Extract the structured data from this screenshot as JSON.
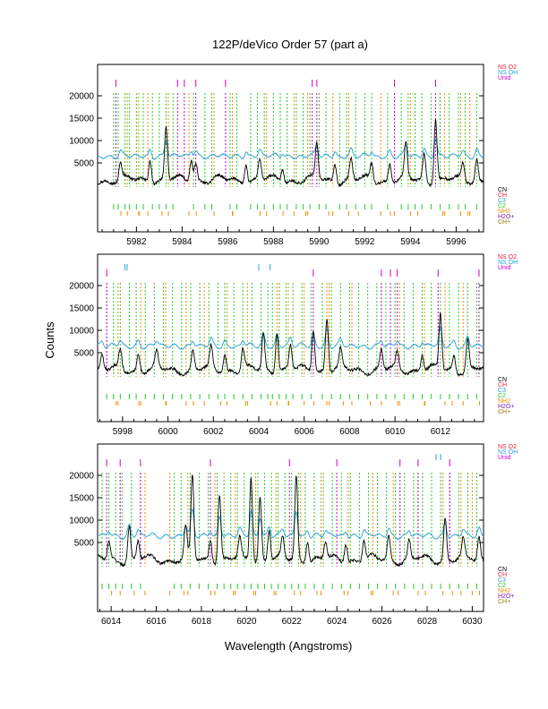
{
  "chart_data": {
    "type": "line",
    "title": "122P/deVico Order 57 (part a)",
    "xlabel": "Wavelength (Angstroms)",
    "ylabel": "Counts",
    "colors": {
      "spectrum": "#000000",
      "model": "#2aa0d8",
      "CN": "#000000",
      "CH": "#e8203c",
      "C3": "#2aa0d8",
      "C2": "#22cc22",
      "NH2": "#f08c00",
      "H2O+": "#7b1fa2",
      "CH+": "#9a7b00",
      "NSO2": "#e8203c",
      "NSOH": "#2aa0d8",
      "Unid": "#cc00cc"
    },
    "top_legend": [
      "NS O2",
      "NS OH",
      "Unid"
    ],
    "bottom_legend": [
      "CN",
      "CH",
      "C3",
      "C2",
      "NH2",
      "H2O+",
      "CH+"
    ],
    "panels": [
      {
        "xlim": [
          5980.3,
          5997.2
        ],
        "xticks": [
          5982,
          5984,
          5986,
          5988,
          5990,
          5992,
          5994,
          5996
        ],
        "ytick_labels": [
          "20000",
          "15000",
          "10000",
          "5000"
        ],
        "yticks": [
          20000,
          15000,
          10000,
          5000
        ],
        "peaks": [
          [
            5981.3,
            3500
          ],
          [
            5982.6,
            5200
          ],
          [
            5983.3,
            11500
          ],
          [
            5984.4,
            5000
          ],
          [
            5984.6,
            4200
          ],
          [
            5986.8,
            4300
          ],
          [
            5987.4,
            4500
          ],
          [
            5988.4,
            3000
          ],
          [
            5989.9,
            8000
          ],
          [
            5990.7,
            4200
          ],
          [
            5991.4,
            4500
          ],
          [
            5992.3,
            3800
          ],
          [
            5993.1,
            3900
          ],
          [
            5993.8,
            7500
          ],
          [
            5994.6,
            6000
          ],
          [
            5995.1,
            14000
          ],
          [
            5996.3,
            3500
          ],
          [
            5996.9,
            5000
          ]
        ],
        "c2_lines": [
          5981.0,
          5981.2,
          5981.5,
          5981.7,
          5982.0,
          5982.3,
          5982.7,
          5983.0,
          5983.3,
          5983.6,
          5984.5,
          5985.0,
          5985.3,
          5986.1,
          5986.4,
          5987.0,
          5987.3,
          5987.6,
          5988.0,
          5988.3,
          5988.6,
          5989.0,
          5989.3,
          5989.6,
          5990.0,
          5990.3,
          5990.9,
          5991.2,
          5991.6,
          5992.0,
          5992.3,
          5993.0,
          5993.6,
          5993.9,
          5994.2,
          5994.5,
          5994.9,
          5995.3,
          5995.7,
          5996.1,
          5996.4,
          5996.9
        ],
        "nh2_lines": [
          5981.6,
          5982.1,
          5982.5,
          5983.4,
          5984.3,
          5985.4,
          5986.2,
          5987.7,
          5988.9,
          5989.5,
          5990.6,
          5991.3,
          5992.7,
          5993.3,
          5994.0,
          5995.5,
          5996.2,
          5996.6
        ],
        "unid_lines": [
          5981.1,
          5983.8,
          5984.1,
          5984.6,
          5985.9,
          5989.7,
          5989.9,
          5993.3,
          5995.1
        ],
        "c3_lines": [],
        "ch_lines": []
      },
      {
        "xlim": [
          5996.9,
          6013.9
        ],
        "xticks": [
          5998,
          6000,
          6002,
          6004,
          6006,
          6008,
          6010,
          6012
        ],
        "ytick_labels": [
          "20000",
          "15000",
          "10000",
          "5000"
        ],
        "yticks": [
          20000,
          15000,
          10000,
          5000
        ],
        "peaks": [
          [
            5997.1,
            3000
          ],
          [
            5997.9,
            4000
          ],
          [
            5998.7,
            3800
          ],
          [
            5999.5,
            3500
          ],
          [
            6001.1,
            4000
          ],
          [
            6001.9,
            4800
          ],
          [
            6002.5,
            3800
          ],
          [
            6003.3,
            4500
          ],
          [
            6004.2,
            8000
          ],
          [
            6004.8,
            9000
          ],
          [
            6005.4,
            5500
          ],
          [
            6006.4,
            9500
          ],
          [
            6007.0,
            12000
          ],
          [
            6007.6,
            4000
          ],
          [
            6009.4,
            4200
          ],
          [
            6010.1,
            3500
          ],
          [
            6011.2,
            3800
          ],
          [
            6012.0,
            12500
          ],
          [
            6012.6,
            3500
          ],
          [
            6013.2,
            7000
          ]
        ],
        "c2_lines": [
          5997.3,
          5997.6,
          5997.9,
          5998.3,
          5998.6,
          5999.0,
          5999.4,
          5999.8,
          6000.2,
          6000.6,
          6001.0,
          6001.4,
          6001.8,
          6002.2,
          6002.5,
          6002.9,
          6003.3,
          6003.7,
          6004.1,
          6004.4,
          6004.6,
          6004.9,
          6005.2,
          6005.5,
          6005.9,
          6006.3,
          6006.8,
          6007.2,
          6007.6,
          6008.0,
          6008.4,
          6008.8,
          6009.2,
          6009.6,
          6010.0,
          6010.4,
          6010.8,
          6011.2,
          6011.6,
          6012.0,
          6012.4,
          6012.8,
          6013.2,
          6013.6
        ],
        "nh2_lines": [
          5997.8,
          5998.8,
          5999.9,
          6000.8,
          6001.6,
          6002.6,
          6003.5,
          6004.8,
          6005.3,
          6006.0,
          6007.0,
          6007.1,
          6008.1,
          6009.4,
          6010.2,
          6011.3,
          6012.2,
          6013.0
        ],
        "unid_lines": [
          5997.3,
          6006.4,
          6009.4,
          6009.8,
          6010.1,
          6011.9,
          6013.7
        ],
        "c3_lines": [
          5998.1,
          5998.2,
          6004.0,
          6004.5
        ],
        "ch_lines": []
      },
      {
        "xlim": [
          6013.4,
          6030.5
        ],
        "xticks": [
          6014,
          6016,
          6018,
          6020,
          6022,
          6024,
          6026,
          6028,
          6030
        ],
        "ytick_labels": [
          "20000",
          "15000",
          "10000",
          "5000"
        ],
        "yticks": [
          20000,
          15000,
          10000,
          5000
        ],
        "peaks": [
          [
            6013.9,
            4000
          ],
          [
            6014.8,
            7500
          ],
          [
            6015.2,
            4000
          ],
          [
            6017.3,
            7000
          ],
          [
            6017.6,
            18500
          ],
          [
            6018.4,
            5000
          ],
          [
            6018.8,
            15000
          ],
          [
            6019.7,
            4500
          ],
          [
            6020.2,
            19000
          ],
          [
            6020.6,
            14000
          ],
          [
            6021.0,
            7000
          ],
          [
            6021.6,
            4500
          ],
          [
            6022.2,
            18500
          ],
          [
            6022.7,
            5000
          ],
          [
            6023.5,
            3800
          ],
          [
            6024.4,
            4200
          ],
          [
            6025.2,
            4500
          ],
          [
            6026.3,
            5500
          ],
          [
            6027.2,
            4000
          ],
          [
            6028.8,
            9500
          ],
          [
            6029.6,
            4000
          ],
          [
            6030.3,
            5000
          ]
        ],
        "c2_lines": [
          6013.6,
          6013.9,
          6014.2,
          6014.5,
          6014.9,
          6015.3,
          6016.8,
          6017.1,
          6017.5,
          6017.9,
          6018.3,
          6018.7,
          6019.0,
          6019.3,
          6019.6,
          6019.9,
          6020.2,
          6020.5,
          6020.8,
          6021.1,
          6021.4,
          6021.7,
          6022.0,
          6022.3,
          6022.6,
          6023.0,
          6023.4,
          6023.8,
          6024.2,
          6024.6,
          6025.0,
          6025.4,
          6025.8,
          6026.2,
          6026.6,
          6027.0,
          6027.4,
          6027.8,
          6028.2,
          6028.6,
          6029.0,
          6029.4,
          6029.8,
          6030.2
        ],
        "nh2_lines": [
          6014.4,
          6015.5,
          6016.6,
          6017.4,
          6018.6,
          6019.5,
          6020.4,
          6021.3,
          6022.4,
          6023.3,
          6024.5,
          6025.6,
          6026.5,
          6027.6,
          6028.7,
          6029.5,
          6030.0
        ],
        "unid_lines": [
          6013.8,
          6014.4,
          6015.3,
          6018.4,
          6021.9,
          6024.0,
          6026.8,
          6027.6,
          6029.0
        ],
        "c3_lines": [
          6028.4,
          6028.6
        ],
        "ch_lines": []
      }
    ]
  }
}
